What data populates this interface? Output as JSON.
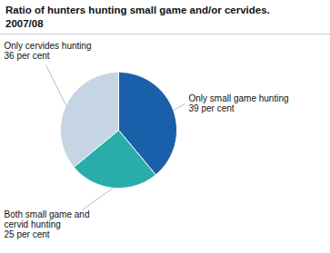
{
  "chart_data": {
    "type": "pie",
    "title": "Ratio of hunters hunting small game and/or cervides.",
    "subtitle": "2007/08",
    "categories": [
      "Only small game hunting",
      "Both small game and\ncervid hunting",
      "Only cervides hunting"
    ],
    "values": [
      39,
      25,
      36
    ],
    "value_labels": [
      "39 per cent",
      "25 per cent",
      "36 per cent"
    ],
    "data_labels": true,
    "colors": [
      "#1a5faa",
      "#2aadaa",
      "#c5d5e4"
    ]
  }
}
